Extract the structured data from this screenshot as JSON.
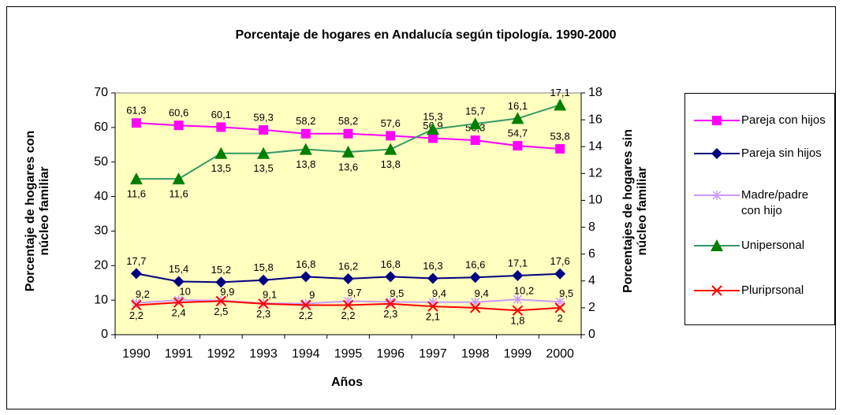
{
  "chart_data": {
    "type": "line",
    "title": "Porcentaje de hogares en Andalucía según tipología. 1990-2000",
    "x_label": "Años",
    "y_label": "Porcentaje de hogares con núcleo familiar",
    "y2_label": "Porcentajes de hogares sin núcleo familiar",
    "categories": [
      "1990",
      "1991",
      "1992",
      "1993",
      "1994",
      "1995",
      "1996",
      "1997",
      "1998",
      "1999",
      "2000"
    ],
    "ylim": [
      0,
      70
    ],
    "yticks": [
      0,
      10,
      20,
      30,
      40,
      50,
      60,
      70
    ],
    "y2lim": [
      0,
      18
    ],
    "y2ticks": [
      0,
      2,
      4,
      6,
      8,
      10,
      12,
      14,
      16,
      18
    ],
    "background": "#ffffc0",
    "legend": "right",
    "series": [
      {
        "name": "Pareja con hijos",
        "color": "#ff00ff",
        "marker": "square",
        "values": [
          61.3,
          60.6,
          60.1,
          59.3,
          58.2,
          58.2,
          57.6,
          56.9,
          56.3,
          54.7,
          53.8
        ],
        "value_labels": [
          "61,3",
          "60,6",
          "60,1",
          "59,3",
          "58,2",
          "58,2",
          "57,6",
          "56,9",
          "56,3",
          "54,7",
          "53,8"
        ]
      },
      {
        "name": "Pareja sin hijos",
        "color": "#000080",
        "marker": "diamond",
        "values": [
          17.7,
          15.4,
          15.2,
          15.8,
          16.8,
          16.2,
          16.8,
          16.3,
          16.6,
          17.1,
          17.6
        ],
        "value_labels": [
          "17,7",
          "15,4",
          "15,2",
          "15,8",
          "16,8",
          "16,2",
          "16,8",
          "16,3",
          "16,6",
          "17,1",
          "17,6"
        ]
      },
      {
        "name": "Madre/padre con hijo",
        "color": "#cc99ff",
        "marker": "asterisk",
        "values": [
          9.2,
          10,
          9.9,
          9.1,
          9,
          9.7,
          9.5,
          9.4,
          9.4,
          10.2,
          9.5
        ],
        "value_labels": [
          "9,2",
          "10",
          "9,9",
          "9,1",
          "9",
          "9,7",
          "9,5",
          "9,4",
          "9,4",
          "10,2",
          "9,5"
        ]
      },
      {
        "name": "Unipersonal",
        "color": "#339966",
        "marker_color": "#008000",
        "marker": "triangle",
        "axis": "y2",
        "values": [
          11.6,
          11.6,
          13.5,
          13.5,
          13.8,
          13.6,
          13.8,
          15.3,
          15.7,
          16.1,
          17.1
        ],
        "value_labels": [
          "11,6",
          "11,6",
          "13,5",
          "13,5",
          "13,8",
          "13,6",
          "13,8",
          "15,3",
          "15,7",
          "16,1",
          "17,1"
        ]
      },
      {
        "name": "Pluriprsonal",
        "color": "#ff0000",
        "marker": "x",
        "axis": "y2",
        "values": [
          2.2,
          2.4,
          2.5,
          2.3,
          2.2,
          2.2,
          2.3,
          2.1,
          2.0,
          1.8,
          2
        ],
        "value_labels": [
          "2,2",
          "2,4",
          "2,5",
          "2,3",
          "2,2",
          "2,2",
          "2,3",
          "2,1",
          null,
          "1,8",
          "2"
        ]
      }
    ]
  }
}
